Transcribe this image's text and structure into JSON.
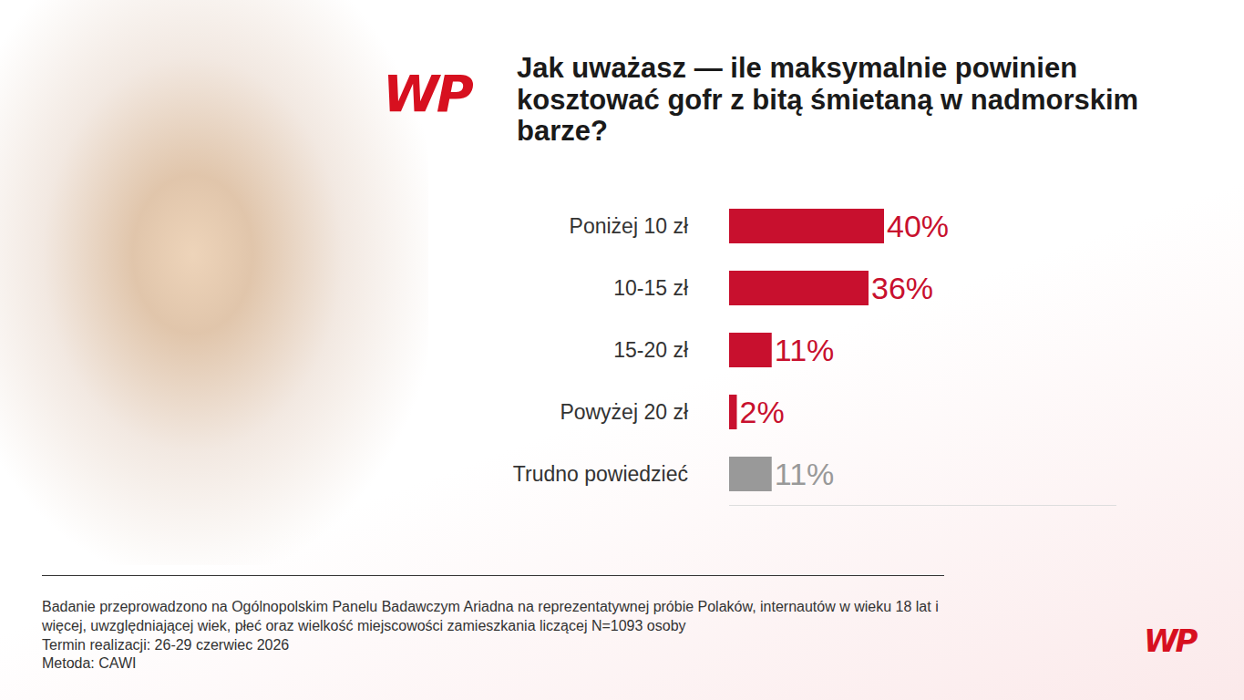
{
  "chart_data": {
    "type": "bar",
    "orientation": "horizontal",
    "title": "Jak uważasz — ile maksymalnie powinien kosztować gofr z bitą śmietaną w nadmorskim barze?",
    "categories": [
      "Poniżej 10 zł",
      "10-15 zł",
      "15-20 zł",
      "Powyżej 20 zł",
      "Trudno powiedzieć"
    ],
    "values": [
      40,
      36,
      11,
      2,
      11
    ],
    "value_labels": [
      "40%",
      "36%",
      "11%",
      "2%",
      "11%"
    ],
    "colors": [
      "#c8102e",
      "#c8102e",
      "#c8102e",
      "#c8102e",
      "#999999"
    ],
    "data_labels": true,
    "tick_labels": "y",
    "grid": false,
    "xlim": [
      0,
      100
    ],
    "footnote": [
      "Badanie przeprowadzono na Ogólnopolskim Panelu Badawczym Ariadna na reprezentatywnej próbie Polaków, internautów w wieku 18 lat i więcej, uwzględniającej wiek, płeć oraz wielkość miejscowości zamieszkania liczącej N=1093 osoby",
      "Termin realizacji: 26-29 czerwiec 2026",
      "Metoda: CAWI"
    ],
    "logo": "WP"
  }
}
